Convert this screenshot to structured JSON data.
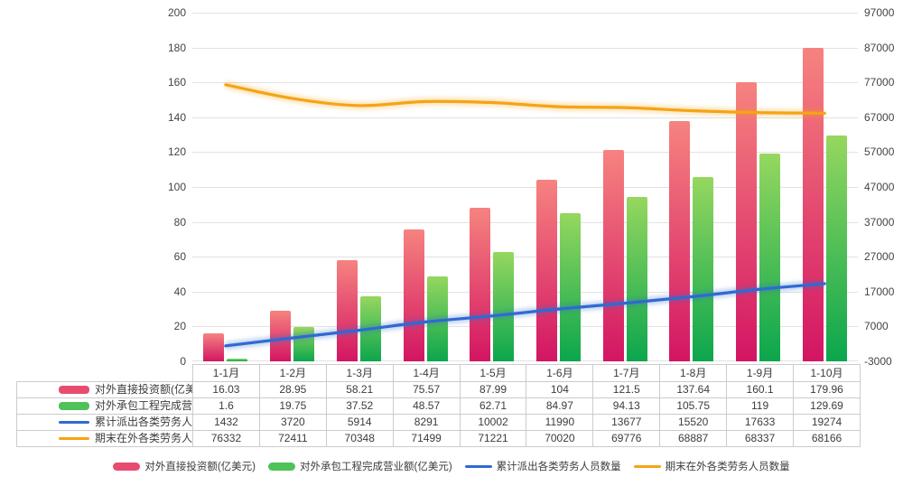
{
  "chart_data": {
    "type": "combo",
    "title": "",
    "categories": [
      "1-1月",
      "1-2月",
      "1-3月",
      "1-4月",
      "1-5月",
      "1-6月",
      "1-7月",
      "1-8月",
      "1-9月",
      "1-10月"
    ],
    "series": [
      {
        "name": "对外直接投资额(亿美元)",
        "kind": "bar",
        "axis": "left",
        "values": [
          16.03,
          28.95,
          58.21,
          75.57,
          87.99,
          104,
          121.5,
          137.64,
          160.1,
          179.96
        ],
        "display_values": [
          "16.03",
          "28.95",
          "58.21",
          "75.57",
          "87.99",
          "104",
          "121.5",
          "137.64",
          "160.1",
          "179.96"
        ],
        "bar_gradient_top": "#f6837f",
        "bar_gradient_bottom": "#d31563",
        "legend_color": "#e74c6f"
      },
      {
        "name": "对外承包工程完成营业额(亿美元)",
        "kind": "bar",
        "axis": "left",
        "values": [
          1.6,
          19.75,
          37.52,
          48.57,
          62.71,
          84.97,
          94.13,
          105.75,
          119,
          129.69
        ],
        "display_values": [
          "1.6",
          "19.75",
          "37.52",
          "48.57",
          "62.71",
          "84.97",
          "94.13",
          "105.75",
          "119",
          "129.69"
        ],
        "bar_gradient_top": "#96d75f",
        "bar_gradient_bottom": "#0ba64d",
        "legend_color": "#4fc258"
      },
      {
        "name": "累计派出各类劳务人员数量",
        "kind": "line",
        "axis": "right",
        "values": [
          1432,
          3720,
          5914,
          8291,
          10002,
          11990,
          13677,
          15520,
          17633,
          19274
        ],
        "display_values": [
          "1432",
          "3720",
          "5914",
          "8291",
          "10002",
          "11990",
          "13677",
          "15520",
          "17633",
          "19274"
        ],
        "color": "#2f6ad1"
      },
      {
        "name": "期末在外各类劳务人员数量",
        "kind": "line",
        "axis": "right",
        "values": [
          76332,
          72411,
          70348,
          71499,
          71221,
          70020,
          69776,
          68887,
          68337,
          68166
        ],
        "display_values": [
          "76332",
          "72411",
          "70348",
          "71499",
          "71221",
          "70020",
          "69776",
          "68887",
          "68337",
          "68166"
        ],
        "color": "#f5a414"
      }
    ],
    "left_axis": {
      "min": 0,
      "max": 200,
      "step": 20,
      "tick_labels": [
        "200",
        "180",
        "160",
        "140",
        "120",
        "100",
        "80",
        "60",
        "40",
        "20",
        "0"
      ]
    },
    "right_axis": {
      "min": -3000,
      "max": 97000,
      "step": 10000,
      "tick_labels": [
        "97000",
        "87000",
        "77000",
        "67000",
        "57000",
        "47000",
        "37000",
        "27000",
        "17000",
        "7000",
        "-3000"
      ]
    },
    "grid": true,
    "legend_position": "bottom",
    "data_table_shown": true
  },
  "colors": {
    "grid": "#e2e2e2",
    "table_border": "#cccccc",
    "axis_text": "#444444",
    "background": "#ffffff"
  }
}
